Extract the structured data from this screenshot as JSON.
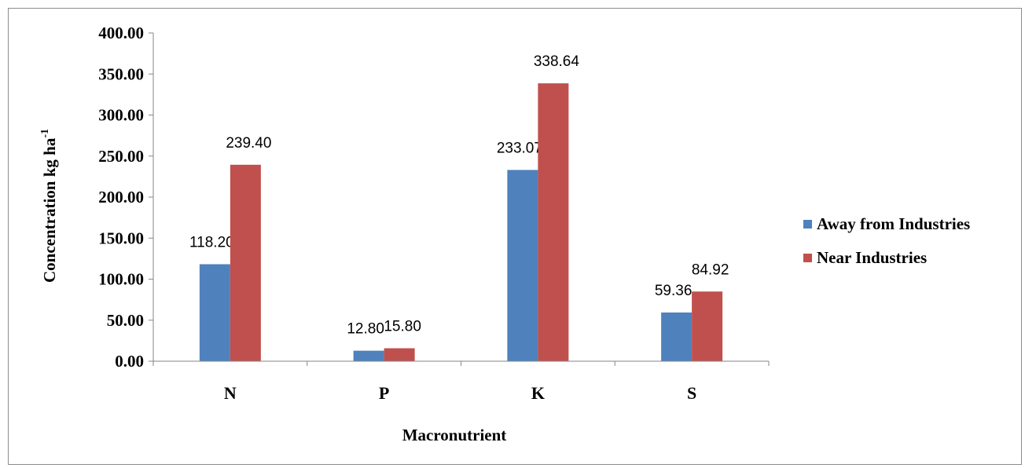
{
  "chart_data": {
    "type": "bar",
    "categories": [
      "N",
      "P",
      "K",
      "S"
    ],
    "series": [
      {
        "name": "Away from Industries",
        "color": "#4f81bd",
        "values": [
          118.2,
          12.8,
          233.07,
          59.36
        ],
        "labels": [
          "118.20",
          "12.80",
          "233.07",
          "59.36"
        ]
      },
      {
        "name": "Near Industries",
        "color": "#c0504d",
        "values": [
          239.4,
          15.8,
          338.64,
          84.92
        ],
        "labels": [
          "239.40",
          "15.80",
          "338.64",
          "84.92"
        ]
      }
    ],
    "xlabel": "Macronutrient",
    "ylabel": "Concentration kg ha",
    "ylabel_superscript": "-1",
    "ylim": [
      0,
      400
    ],
    "yticks": [
      0,
      50,
      100,
      150,
      200,
      250,
      300,
      350,
      400
    ],
    "ytick_labels": [
      "0.00",
      "50.00",
      "100.00",
      "150.00",
      "200.00",
      "250.00",
      "300.00",
      "350.00",
      "400.00"
    ],
    "grid": false,
    "legend": "right"
  }
}
